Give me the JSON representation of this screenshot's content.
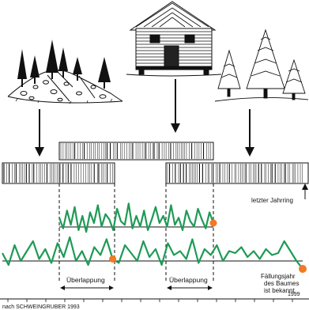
{
  "labels": {
    "last_ring": "letzter Jahrring",
    "overlap_left": "Überlappung",
    "overlap_right": "Überlappung",
    "felling_line1": "Fällungsjahr",
    "felling_line2": "des Baumes",
    "felling_line3": "ist bekannt",
    "source": "nach SCHWEINGRUBER 1993",
    "year": "1999"
  },
  "icons": {
    "house": "log-cabin-illustration",
    "ruin": "ruin-with-trees-illustration",
    "forest": "living-trees-illustration"
  },
  "colors": {
    "curve": "#1f9a55",
    "dot": "#f07b22",
    "ink": "#111111"
  },
  "series": {
    "top": [
      0.55,
      0.25,
      0.75,
      0.35,
      0.85,
      0.2,
      0.6,
      0.15,
      0.7,
      0.4,
      0.9,
      0.3,
      0.65,
      0.5,
      0.2,
      0.8,
      0.45,
      0.35,
      0.95,
      0.25,
      0.6,
      0.3,
      0.75,
      0.2,
      0.5,
      0.85,
      0.4,
      0.6,
      0.3,
      0.9,
      0.35,
      0.55,
      0.2,
      0.75,
      0.45,
      0.3,
      0.8,
      0.5,
      0.25,
      0.7,
      0.4
    ],
    "bottom": [
      0.5,
      0.2,
      0.7,
      0.3,
      0.55,
      0.8,
      0.35,
      0.6,
      0.25,
      0.75,
      0.4,
      0.9,
      0.3,
      0.55,
      0.2,
      0.65,
      0.45,
      0.85,
      0.35,
      0.25,
      0.7,
      0.5,
      0.3,
      0.8,
      0.4,
      0.6,
      0.2,
      0.75,
      0.45,
      0.55,
      0.35,
      0.85,
      0.25,
      0.6,
      0.45,
      0.7,
      0.3,
      0.55,
      0.5,
      0.65,
      0.4,
      0.55,
      0.35,
      0.6,
      0.45,
      0.5,
      0.8,
      0.55,
      0.3,
      0.1
    ]
  }
}
